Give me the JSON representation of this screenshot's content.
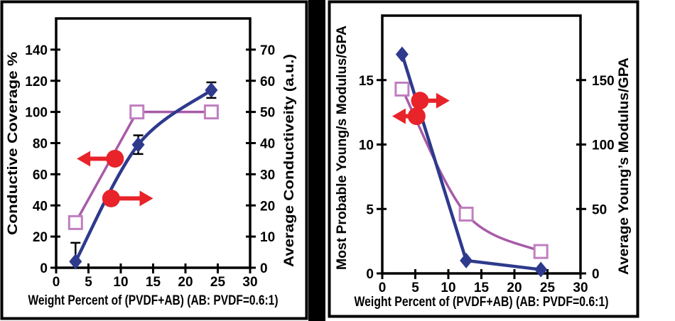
{
  "colors": {
    "frame": "#000000",
    "blue_series": "#2e3a8c",
    "purple_line": "#a85aa8",
    "purple_marker_stroke": "#c07fc0",
    "marker_fill": "#ffffff",
    "red_annotation": "#e8232a",
    "text": "#000000",
    "background": "#ffffff"
  },
  "chart_data": [
    {
      "type": "line",
      "panel": "left",
      "xlabel": "Weight Percent of (PVDF+AB) (AB: PVDF=0.6:1)",
      "xlim": [
        0,
        30
      ],
      "x_ticks": [
        0,
        5,
        10,
        15,
        20,
        25,
        30
      ],
      "axes": {
        "left": {
          "label": "Conductive Coverage %",
          "lim": [
            0,
            160
          ],
          "ticks": [
            0,
            20,
            40,
            60,
            80,
            100,
            120,
            140
          ]
        },
        "right": {
          "label": "Average Conductiveity (a.u.)",
          "lim": [
            0,
            80
          ],
          "ticks": [
            0,
            10,
            20,
            30,
            40,
            50,
            60,
            70
          ]
        }
      },
      "series": [
        {
          "name": "average-conductivity",
          "axis": "right",
          "marker": "square",
          "smooth": false,
          "color_key": "purple_line",
          "points": [
            {
              "x": 3,
              "y": 14.5
            },
            {
              "x": 12.5,
              "y": 50
            },
            {
              "x": 24,
              "y": 50
            }
          ]
        },
        {
          "name": "conductive-coverage",
          "axis": "left",
          "marker": "diamond",
          "smooth": true,
          "color_key": "blue_series",
          "points": [
            {
              "x": 3,
              "y": 4,
              "err_up": 12,
              "err_down": 0
            },
            {
              "x": 12.7,
              "y": 79,
              "err_up": 6,
              "err_down": 6
            },
            {
              "x": 24,
              "y": 114,
              "err_up": 5,
              "err_down": 5
            }
          ]
        }
      ],
      "annotations": [
        {
          "name": "points-to-left-axis",
          "shape": "circle-arrow",
          "direction": "left",
          "axis": "left",
          "x": 9.1,
          "y": 70,
          "tip_x": 3.2
        },
        {
          "name": "points-to-right-axis",
          "shape": "circle-arrow",
          "direction": "right",
          "axis": "left",
          "x": 8.5,
          "y": 44.5,
          "tip_x": 15
        }
      ]
    },
    {
      "type": "line",
      "panel": "right",
      "xlabel": "Weight Percent of (PVDF+AB) (AB: PVDF=0.6:1)",
      "xlim": [
        0,
        30
      ],
      "x_ticks": [
        0,
        5,
        10,
        15,
        20,
        25,
        30
      ],
      "axes": {
        "left": {
          "label": "Most Probable Young/s Modulus/GPA",
          "lim": [
            0,
            20
          ],
          "ticks": [
            0,
            5,
            10,
            15
          ]
        },
        "right": {
          "label": "Average Young’s Modulus/GPA",
          "lim": [
            0,
            200
          ],
          "ticks": [
            0,
            50,
            100,
            150
          ]
        }
      },
      "series": [
        {
          "name": "average-youngs-modulus",
          "axis": "right",
          "marker": "square",
          "smooth": true,
          "color_key": "purple_line",
          "points": [
            {
              "x": 3,
              "y": 143
            },
            {
              "x": 12.7,
              "y": 46
            },
            {
              "x": 24,
              "y": 17
            }
          ]
        },
        {
          "name": "most-probable-youngs-modulus",
          "axis": "left",
          "marker": "diamond",
          "smooth": false,
          "color_key": "blue_series",
          "points": [
            {
              "x": 3,
              "y": 17
            },
            {
              "x": 12.7,
              "y": 1
            },
            {
              "x": 24,
              "y": 0.3
            }
          ]
        }
      ],
      "annotations": [
        {
          "name": "points-to-right-axis",
          "shape": "circle-arrow",
          "direction": "right",
          "axis": "left",
          "x": 5.7,
          "y": 13.4,
          "tip_x": 10.2
        },
        {
          "name": "points-to-left-axis",
          "shape": "circle-arrow",
          "direction": "left",
          "axis": "left",
          "x": 5.2,
          "y": 12.2,
          "tip_x": 1.5
        }
      ]
    }
  ]
}
